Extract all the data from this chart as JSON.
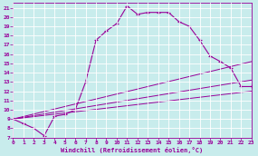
{
  "bg_color": "#c8ecec",
  "line_color": "#990099",
  "grid_color": "#ffffff",
  "xlabel": "Windchill (Refroidissement éolien,°C)",
  "xlim": [
    0,
    23
  ],
  "ylim": [
    7,
    21.5
  ],
  "yticks": [
    7,
    8,
    9,
    10,
    11,
    12,
    13,
    14,
    15,
    16,
    17,
    18,
    19,
    20,
    21
  ],
  "xticks": [
    0,
    1,
    2,
    3,
    4,
    5,
    6,
    7,
    8,
    9,
    10,
    11,
    12,
    13,
    14,
    15,
    16,
    17,
    18,
    19,
    20,
    21,
    22,
    23
  ],
  "line1_x": [
    0,
    1,
    2,
    3,
    4,
    5,
    6,
    7,
    8,
    9,
    10,
    11,
    12,
    13,
    14,
    15,
    16,
    17,
    18,
    19,
    20,
    21,
    22,
    23
  ],
  "line1_y": [
    9.0,
    8.5,
    8.0,
    7.2,
    9.3,
    9.5,
    10.0,
    13.0,
    17.5,
    18.5,
    19.3,
    21.2,
    20.3,
    20.5,
    20.5,
    20.5,
    19.5,
    19.0,
    17.5,
    15.8,
    15.2,
    14.5,
    12.5,
    12.5
  ],
  "line2_x": [
    0,
    23
  ],
  "line2_y": [
    9.0,
    15.2
  ],
  "line3_x": [
    0,
    23
  ],
  "line3_y": [
    9.0,
    13.2
  ],
  "line4_x": [
    0,
    23
  ],
  "line4_y": [
    9.0,
    12.0
  ]
}
